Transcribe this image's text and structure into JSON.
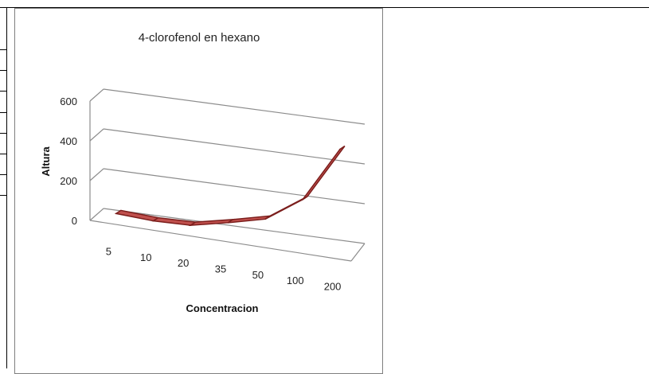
{
  "chart_data": {
    "type": "line",
    "title": "4-clorofenol en hexano",
    "xlabel": "Concentracion",
    "ylabel": "Altura",
    "categories": [
      "5",
      "10",
      "20",
      "35",
      "50",
      "100",
      "200"
    ],
    "values": [
      15,
      5,
      10,
      50,
      95,
      220,
      500
    ],
    "ylim": [
      0,
      600
    ],
    "yticks": [
      "0",
      "200",
      "400",
      "600"
    ],
    "grid": true,
    "three_d": true,
    "series_color": "#c0504d",
    "series_dark_color": "#7b1e1c"
  }
}
